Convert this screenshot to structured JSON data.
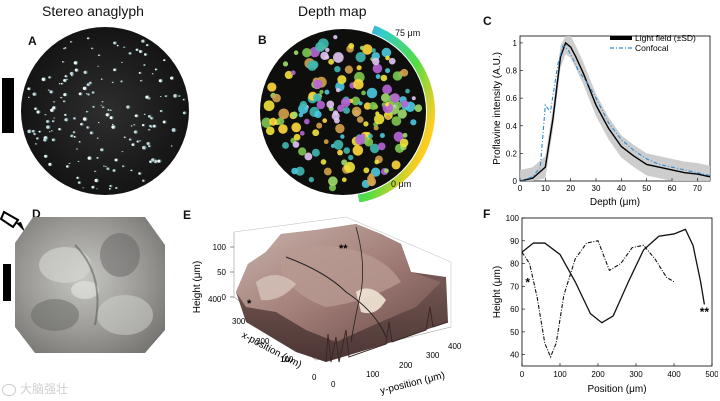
{
  "panel_a": {
    "label": "A",
    "title": "Stereo anaglyph"
  },
  "panel_b": {
    "label": "B",
    "title": "Depth map",
    "scale_top": "75 μm",
    "scale_bottom": "0 μm"
  },
  "panel_c": {
    "label": "C",
    "legend": [
      "Light field (±SD)",
      "Confocal"
    ],
    "xlabel": "Depth (μm)",
    "ylabel": "Proflavine intensity (A.U.)",
    "xticks": [
      "0",
      "10",
      "20",
      "30",
      "40",
      "50",
      "60",
      "70"
    ],
    "yticks": [
      "0",
      "0.2",
      "0.4",
      "0.6",
      "0.8",
      "1"
    ]
  },
  "panel_d": {
    "label": "D"
  },
  "panel_e": {
    "label": "E",
    "zlabel": "Height (μm)",
    "xlabel": "x-position (μm)",
    "ylabel": "y-position (μm)",
    "zticks": [
      "100",
      "50",
      "0"
    ],
    "xticks": [
      "400",
      "300",
      "200",
      "100",
      "0"
    ],
    "yticks": [
      "0",
      "100",
      "200",
      "300",
      "400"
    ],
    "star_single": "*",
    "star_double": "**"
  },
  "panel_f": {
    "label": "F",
    "xlabel": "Position (μm)",
    "ylabel": "Height (μm)",
    "xticks": [
      "0",
      "100",
      "200",
      "300",
      "400",
      "500"
    ],
    "yticks": [
      "100",
      "90",
      "80",
      "70",
      "60",
      "50",
      "40"
    ],
    "star_single": "*",
    "star_double": "**"
  },
  "watermark": {
    "text": "大脑强壮"
  },
  "chart_data": [
    {
      "type": "line",
      "panel": "C",
      "xlabel": "Depth (μm)",
      "ylabel": "Proflavine intensity (A.U.)",
      "xlim": [
        0,
        75
      ],
      "ylim": [
        0,
        1.05
      ],
      "legend_position": "top-right",
      "series": [
        {
          "name": "Light field (±SD)",
          "x": [
            0,
            5,
            10,
            13,
            16,
            18,
            20,
            22,
            25,
            30,
            35,
            40,
            45,
            50,
            55,
            60,
            65,
            70,
            75
          ],
          "y": [
            0.0,
            0.02,
            0.1,
            0.45,
            0.9,
            1.0,
            0.97,
            0.9,
            0.78,
            0.55,
            0.38,
            0.25,
            0.18,
            0.12,
            0.1,
            0.08,
            0.06,
            0.05,
            0.03
          ],
          "sd": 0.08
        },
        {
          "name": "Confocal",
          "x": [
            0,
            5,
            8,
            10,
            12,
            15,
            17,
            19,
            21,
            23,
            27,
            30,
            35,
            40,
            45,
            50,
            55,
            60,
            65,
            70,
            75
          ],
          "y": [
            0.0,
            0.03,
            0.1,
            0.55,
            0.5,
            0.85,
            0.98,
            0.95,
            0.88,
            0.8,
            0.7,
            0.6,
            0.42,
            0.3,
            0.22,
            0.16,
            0.12,
            0.1,
            0.08,
            0.06,
            0.04
          ]
        }
      ]
    },
    {
      "type": "line",
      "panel": "F",
      "xlabel": "Position (μm)",
      "ylabel": "Height (μm)",
      "xlim": [
        0,
        500
      ],
      "ylim": [
        35,
        100
      ],
      "series": [
        {
          "name": "profile-solid",
          "x": [
            0,
            30,
            60,
            100,
            140,
            180,
            210,
            240,
            280,
            320,
            360,
            400,
            430,
            450,
            470,
            480
          ],
          "y": [
            85,
            89,
            89,
            84,
            72,
            58,
            54,
            57,
            72,
            86,
            92,
            93,
            95,
            88,
            72,
            62
          ]
        },
        {
          "name": "profile-dashed",
          "x": [
            0,
            20,
            40,
            60,
            75,
            90,
            110,
            140,
            170,
            200,
            230,
            260,
            290,
            320,
            350,
            380,
            400
          ],
          "y": [
            85,
            80,
            65,
            45,
            39,
            45,
            66,
            82,
            89,
            90,
            77,
            80,
            87,
            88,
            82,
            74,
            72
          ]
        }
      ]
    }
  ]
}
